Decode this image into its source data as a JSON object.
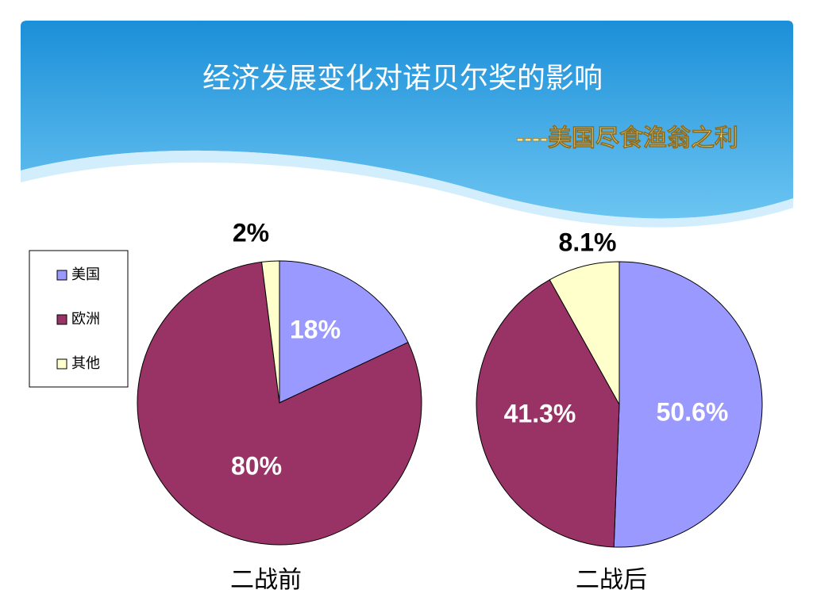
{
  "slide": {
    "title": "经济发展变化对诺贝尔奖的影响",
    "subtitle": "----美国尽食渔翁之利"
  },
  "chart_data": [
    {
      "type": "pie",
      "title": "二战前",
      "categories": [
        "美国",
        "欧洲",
        "其他"
      ],
      "colors": [
        "#9999ff",
        "#993366",
        "#ffffcc"
      ],
      "values": [
        18,
        80,
        2
      ],
      "value_labels": [
        "18%",
        "80%",
        "2%"
      ],
      "legend": "left"
    },
    {
      "type": "pie",
      "title": "二战后",
      "categories": [
        "美国",
        "欧洲",
        "其他"
      ],
      "colors": [
        "#9999ff",
        "#993366",
        "#ffffcc"
      ],
      "values": [
        50.6,
        41.3,
        8.1
      ],
      "value_labels": [
        "50.6%",
        "41.3%",
        "8.1%"
      ]
    }
  ]
}
